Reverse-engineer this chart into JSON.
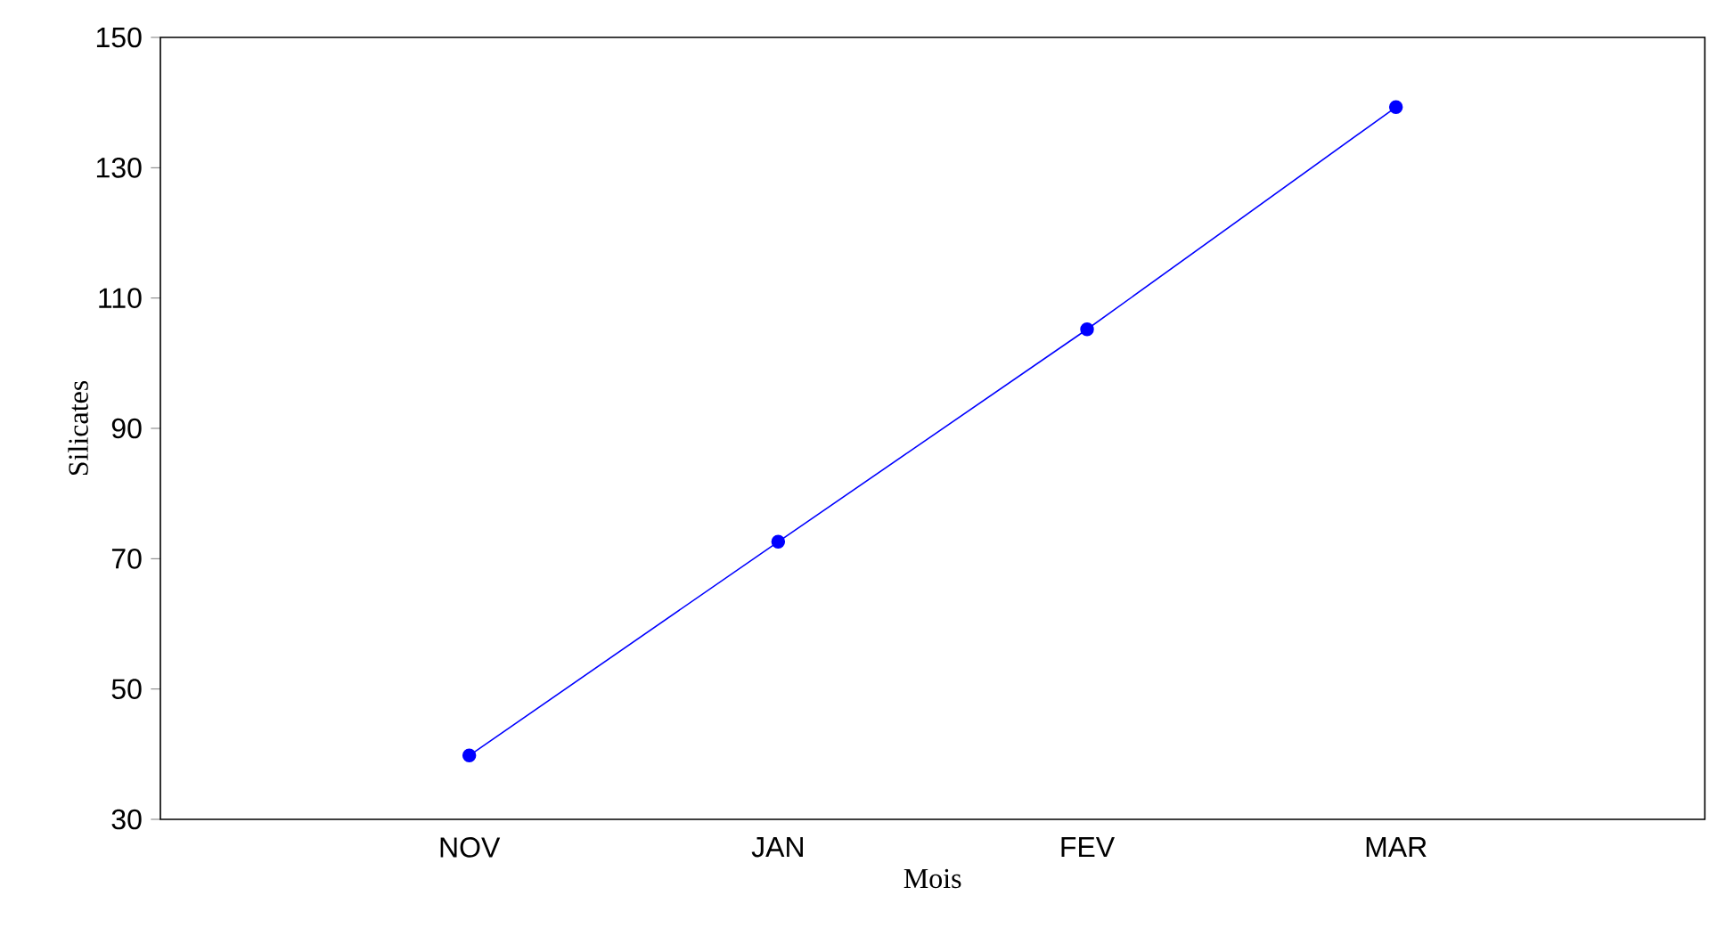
{
  "chart_data": {
    "type": "line",
    "xlabel": "Mois",
    "ylabel": "Silicates",
    "categories": [
      "NOV",
      "JAN",
      "FEV",
      "MAR"
    ],
    "series": [
      {
        "color": "#0000ff",
        "values": [
          39.8,
          72.6,
          105.2,
          139.3
        ]
      }
    ],
    "ylim": [
      30,
      150
    ],
    "yticks": [
      30,
      50,
      70,
      90,
      110,
      130,
      150
    ],
    "marker": "circle",
    "line_style": "solid"
  }
}
